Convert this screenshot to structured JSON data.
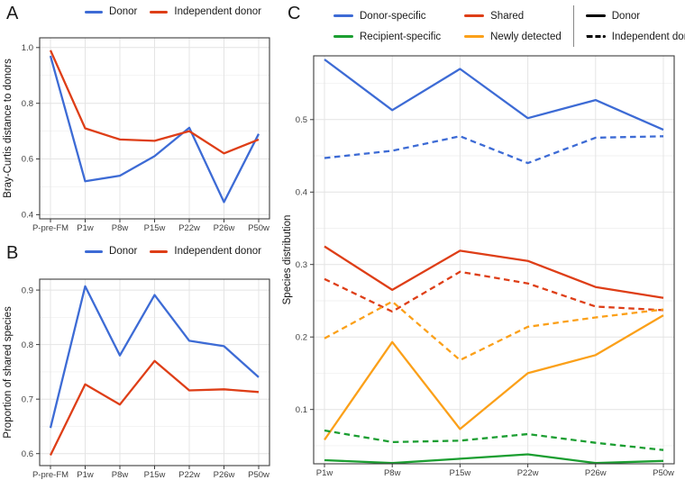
{
  "panelA": {
    "label": "A",
    "legend": [
      {
        "label": "Donor",
        "color": "#3D6BD5"
      },
      {
        "label": "Independent donor",
        "color": "#DE3E17"
      }
    ]
  },
  "panelB": {
    "label": "B",
    "legend": [
      {
        "label": "Donor",
        "color": "#3D6BD5"
      },
      {
        "label": "Independent donor",
        "color": "#DE3E17"
      }
    ]
  },
  "panelC": {
    "label": "C",
    "legend_colors": [
      {
        "label": "Donor-specific",
        "color": "#3D6BD5"
      },
      {
        "label": "Recipient-specific",
        "color": "#1B9E31"
      },
      {
        "label": "Shared",
        "color": "#DE3E17"
      },
      {
        "label": "Newly detected",
        "color": "#FBA019"
      }
    ],
    "legend_linetypes": [
      {
        "label": "Donor",
        "style": "solid",
        "color": "#000000"
      },
      {
        "label": "Independent donor",
        "style": "dashed",
        "color": "#000000"
      }
    ]
  },
  "chart_data": [
    {
      "id": "A",
      "type": "line",
      "ylabel": "Bray-Curtis distance to donors",
      "categories": [
        "P-pre-FM",
        "P1w",
        "P8w",
        "P15w",
        "P22w",
        "P26w",
        "P50w"
      ],
      "ylim": [
        0.385,
        1.035
      ],
      "yticks": [
        0.4,
        0.6,
        0.8,
        1.0
      ],
      "grid": true,
      "legend_position": "top",
      "series": [
        {
          "name": "Donor",
          "color": "#3D6BD5",
          "linetype": "solid",
          "values": [
            0.97,
            0.52,
            0.54,
            0.61,
            0.712,
            0.445,
            0.69
          ]
        },
        {
          "name": "Independent donor",
          "color": "#DE3E17",
          "linetype": "solid",
          "values": [
            0.99,
            0.71,
            0.67,
            0.665,
            0.7,
            0.62,
            0.67
          ]
        }
      ]
    },
    {
      "id": "B",
      "type": "line",
      "ylabel": "Proportion of shared species",
      "categories": [
        "P-pre-FM",
        "P1w",
        "P8w",
        "P15w",
        "P22w",
        "P26w",
        "P50w"
      ],
      "ylim": [
        0.578,
        0.92
      ],
      "yticks": [
        0.6,
        0.7,
        0.8,
        0.9
      ],
      "grid": true,
      "legend_position": "top",
      "series": [
        {
          "name": "Donor",
          "color": "#3D6BD5",
          "linetype": "solid",
          "values": [
            0.647,
            0.907,
            0.78,
            0.891,
            0.807,
            0.797,
            0.74
          ]
        },
        {
          "name": "Independent donor",
          "color": "#DE3E17",
          "linetype": "solid",
          "values": [
            0.597,
            0.727,
            0.69,
            0.77,
            0.716,
            0.718,
            0.713
          ]
        }
      ]
    },
    {
      "id": "C",
      "type": "line",
      "ylabel": "Species distribution",
      "categories": [
        "P1w",
        "P8w",
        "P15w",
        "P22w",
        "P26w",
        "P50w"
      ],
      "ylim": [
        0.025,
        0.588
      ],
      "yticks": [
        0.1,
        0.2,
        0.3,
        0.4,
        0.5
      ],
      "grid": true,
      "legend_position": "top",
      "series": [
        {
          "name": "Donor-specific / Donor",
          "group": "Donor",
          "color": "#3D6BD5",
          "linetype": "solid",
          "values": [
            0.583,
            0.513,
            0.57,
            0.502,
            0.527,
            0.486
          ]
        },
        {
          "name": "Donor-specific / Independent donor",
          "group": "Independent donor",
          "color": "#3D6BD5",
          "linetype": "dashed",
          "values": [
            0.447,
            0.457,
            0.477,
            0.44,
            0.475,
            0.477
          ]
        },
        {
          "name": "Shared / Donor",
          "group": "Donor",
          "color": "#DE3E17",
          "linetype": "solid",
          "values": [
            0.325,
            0.265,
            0.319,
            0.305,
            0.269,
            0.254
          ]
        },
        {
          "name": "Shared / Independent donor",
          "group": "Independent donor",
          "color": "#DE3E17",
          "linetype": "dashed",
          "values": [
            0.28,
            0.235,
            0.29,
            0.274,
            0.242,
            0.237
          ]
        },
        {
          "name": "Newly detected / Donor",
          "group": "Donor",
          "color": "#FBA019",
          "linetype": "solid",
          "values": [
            0.058,
            0.193,
            0.073,
            0.15,
            0.175,
            0.23
          ]
        },
        {
          "name": "Newly detected / Independent donor",
          "group": "Independent donor",
          "color": "#FBA019",
          "linetype": "dashed",
          "values": [
            0.198,
            0.249,
            0.168,
            0.214,
            0.227,
            0.238
          ]
        },
        {
          "name": "Recipient-specific / Donor",
          "group": "Donor",
          "color": "#1B9E31",
          "linetype": "solid",
          "values": [
            0.03,
            0.026,
            0.032,
            0.038,
            0.026,
            0.029
          ]
        },
        {
          "name": "Recipient-specific / Independent donor",
          "group": "Independent donor",
          "color": "#1B9E31",
          "linetype": "dashed",
          "values": [
            0.071,
            0.055,
            0.057,
            0.066,
            0.054,
            0.044
          ]
        }
      ]
    }
  ]
}
